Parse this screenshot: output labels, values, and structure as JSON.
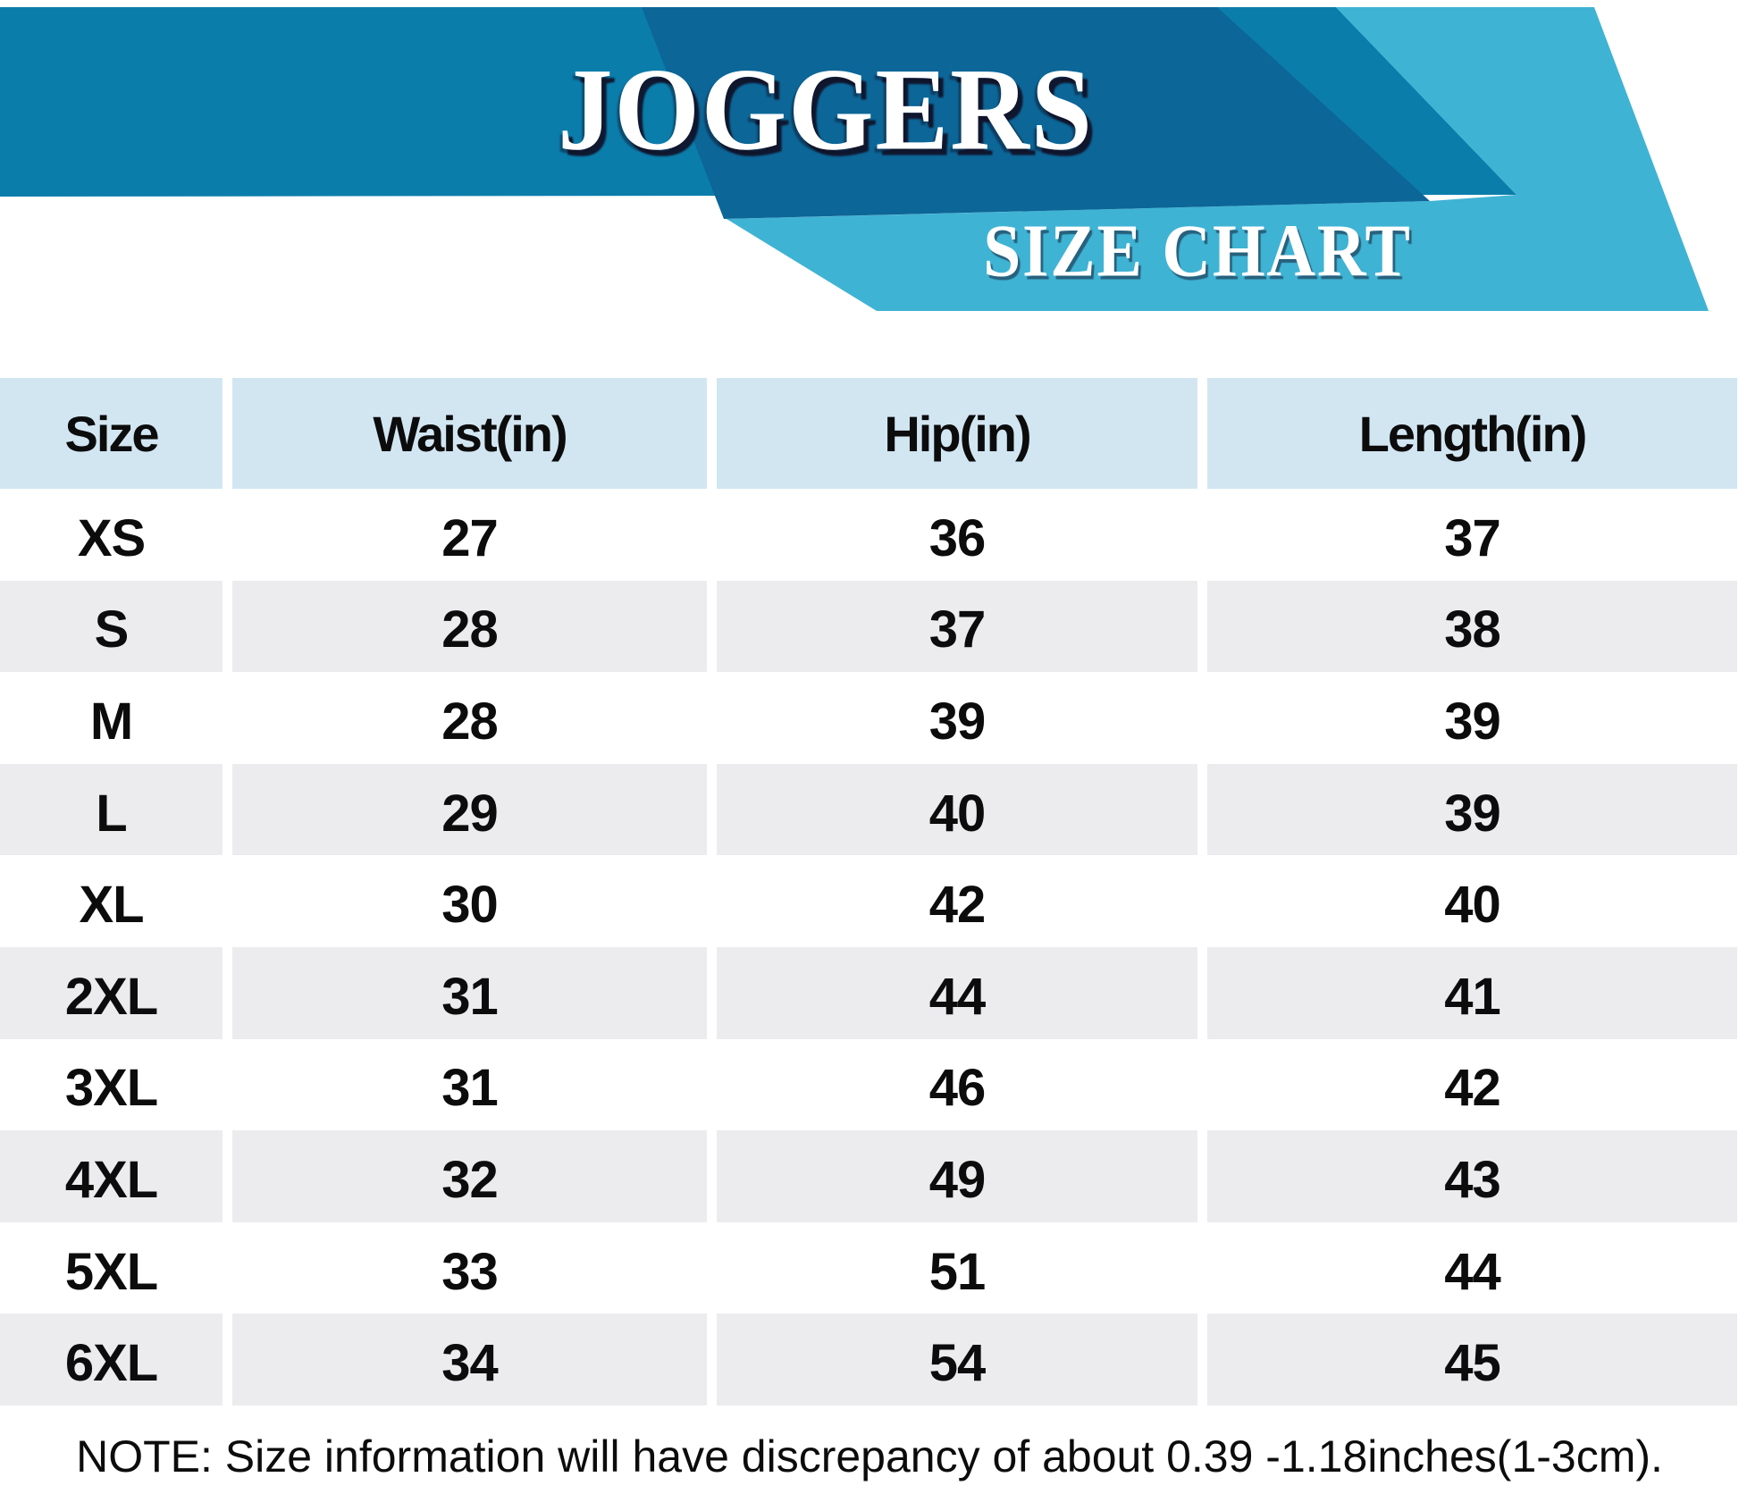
{
  "header": {
    "title": "JOGGERS",
    "subtitle": "SIZE CHART"
  },
  "theme": {
    "main_blue": "#0b7dab",
    "dark_blue": "#0c6697",
    "cyan": "#3fb3d4",
    "header_cell_bg": "#d2e6f2",
    "alt_row_bg": "#ececef",
    "text_color": "#0c0c0c",
    "banner_text_color": "#ffffff"
  },
  "chart_data": {
    "type": "table",
    "title": "JOGGERS",
    "subtitle": "SIZE CHART",
    "columns": [
      "Size",
      "Waist(in)",
      "Hip(in)",
      "Length(in)"
    ],
    "rows": [
      {
        "size": "XS",
        "waist": "27",
        "hip": "36",
        "length": "37"
      },
      {
        "size": "S",
        "waist": "28",
        "hip": "37",
        "length": "38"
      },
      {
        "size": "M",
        "waist": "28",
        "hip": "39",
        "length": "39"
      },
      {
        "size": "L",
        "waist": "29",
        "hip": "40",
        "length": "39"
      },
      {
        "size": "XL",
        "waist": "30",
        "hip": "42",
        "length": "40"
      },
      {
        "size": "2XL",
        "waist": "31",
        "hip": "44",
        "length": "41"
      },
      {
        "size": "3XL",
        "waist": "31",
        "hip": "46",
        "length": "42"
      },
      {
        "size": "4XL",
        "waist": "32",
        "hip": "49",
        "length": "43"
      },
      {
        "size": "5XL",
        "waist": "33",
        "hip": "51",
        "length": "44"
      },
      {
        "size": "6XL",
        "waist": "34",
        "hip": "54",
        "length": "45"
      }
    ]
  },
  "note": "NOTE: Size information will have discrepancy of about 0.39 -1.18inches(1-3cm)."
}
